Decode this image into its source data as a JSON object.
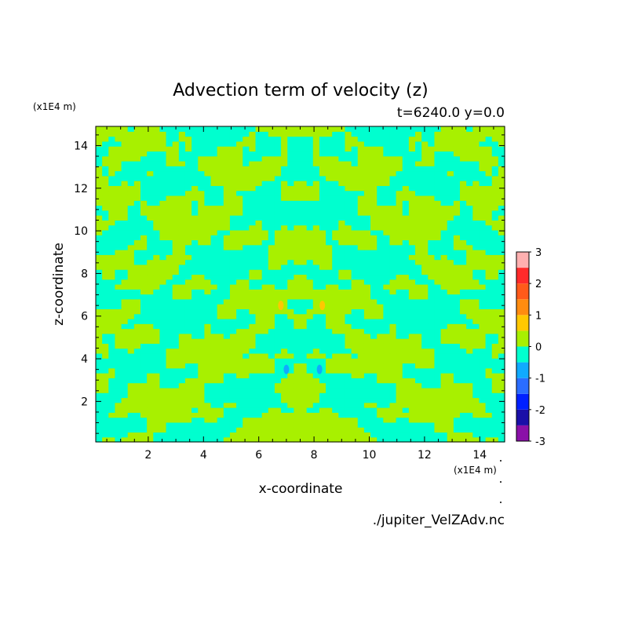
{
  "chart_data": {
    "type": "heatmap",
    "title": "Advection term of velocity (z)",
    "subtitle": "t=6240.0 y=0.0",
    "xlabel": "x-coordinate",
    "ylabel": "z-coordinate",
    "x_unit": "(x1E4 m)",
    "y_unit": "(x1E4 m)",
    "xlim": [
      0.1,
      14.9
    ],
    "ylim": [
      0.1,
      14.9
    ],
    "x_ticks": [
      2,
      4,
      6,
      8,
      10,
      12,
      14
    ],
    "y_ticks": [
      2,
      4,
      6,
      8,
      10,
      12,
      14
    ],
    "source": "./jupiter_VelZAdv.nc",
    "colorbar": {
      "ticks": [
        -3,
        -2,
        -1,
        0,
        1,
        2,
        3
      ],
      "levels": [
        {
          "from": -3.0,
          "to": -2.5,
          "color": "#8a10a8"
        },
        {
          "from": -2.5,
          "to": -2.0,
          "color": "#1a0fa8"
        },
        {
          "from": -2.0,
          "to": -1.5,
          "color": "#0020ff"
        },
        {
          "from": -1.5,
          "to": -1.0,
          "color": "#2a6dff"
        },
        {
          "from": -1.0,
          "to": -0.5,
          "color": "#10aaff"
        },
        {
          "from": -0.5,
          "to": 0.0,
          "color": "#00ffcf"
        },
        {
          "from": 0.0,
          "to": 0.5,
          "color": "#a8f000"
        },
        {
          "from": 0.5,
          "to": 1.0,
          "color": "#ffc800"
        },
        {
          "from": 1.0,
          "to": 1.5,
          "color": "#ff8c10"
        },
        {
          "from": 1.5,
          "to": 2.0,
          "color": "#ff5a1a"
        },
        {
          "from": 2.0,
          "to": 2.5,
          "color": "#ff2a2a"
        },
        {
          "from": 2.5,
          "to": 3.0,
          "color": "#ffb0b0"
        }
      ]
    },
    "field": {
      "grid_cells": 64,
      "positive_fraction": 0.5,
      "weak_extremes": [
        {
          "x": 6.8,
          "z": 6.5,
          "value": 0.7
        },
        {
          "x": 8.3,
          "z": 6.5,
          "value": 0.7
        },
        {
          "x": 7.0,
          "z": 3.5,
          "value": -0.7
        },
        {
          "x": 8.2,
          "z": 3.5,
          "value": -0.7
        }
      ]
    }
  }
}
